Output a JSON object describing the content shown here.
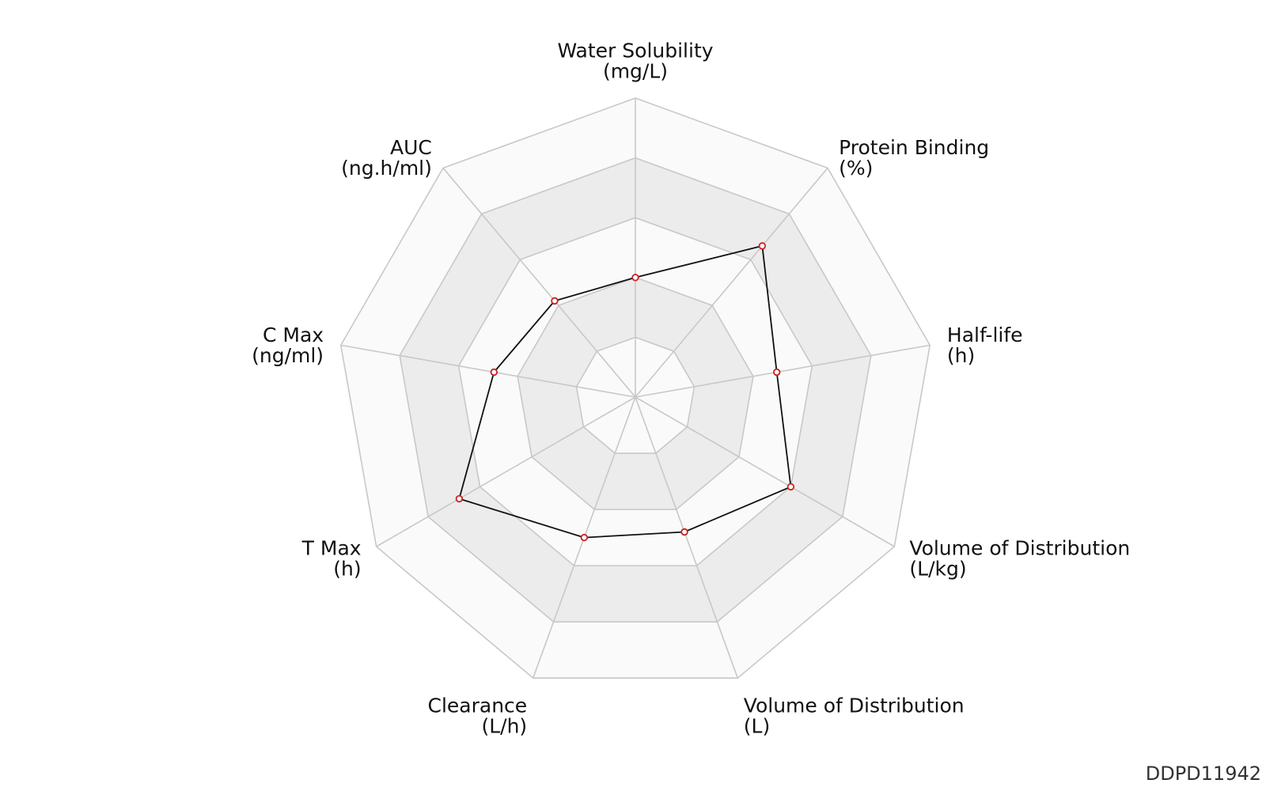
{
  "chart_data": {
    "type": "radar",
    "axes": [
      {
        "name": "Water Solubility",
        "unit": "(mg/L)"
      },
      {
        "name": "Protein Binding",
        "unit": "(%)"
      },
      {
        "name": "Half-life",
        "unit": "(h)"
      },
      {
        "name": "Volume of Distribution",
        "unit": "(L/kg)"
      },
      {
        "name": "Volume of Distribution",
        "unit": "(L)"
      },
      {
        "name": "Clearance",
        "unit": "(L/h)"
      },
      {
        "name": "T Max",
        "unit": "(h)"
      },
      {
        "name": "C Max",
        "unit": "(ng/ml)"
      },
      {
        "name": "AUC",
        "unit": "(ng.h/ml)"
      }
    ],
    "scale": [
      0,
      5
    ],
    "rings": 5,
    "series": [
      {
        "values": [
          2.0,
          3.3,
          2.4,
          3.0,
          2.4,
          2.5,
          3.4,
          2.4,
          2.1
        ]
      }
    ],
    "colors": {
      "line": "#111111",
      "marker_edge": "#cc2222",
      "grid": "#c8c8c8",
      "band_light": "#fafafa",
      "band_dark": "#ececec"
    }
  },
  "footer": {
    "id": "DDPD11942"
  }
}
